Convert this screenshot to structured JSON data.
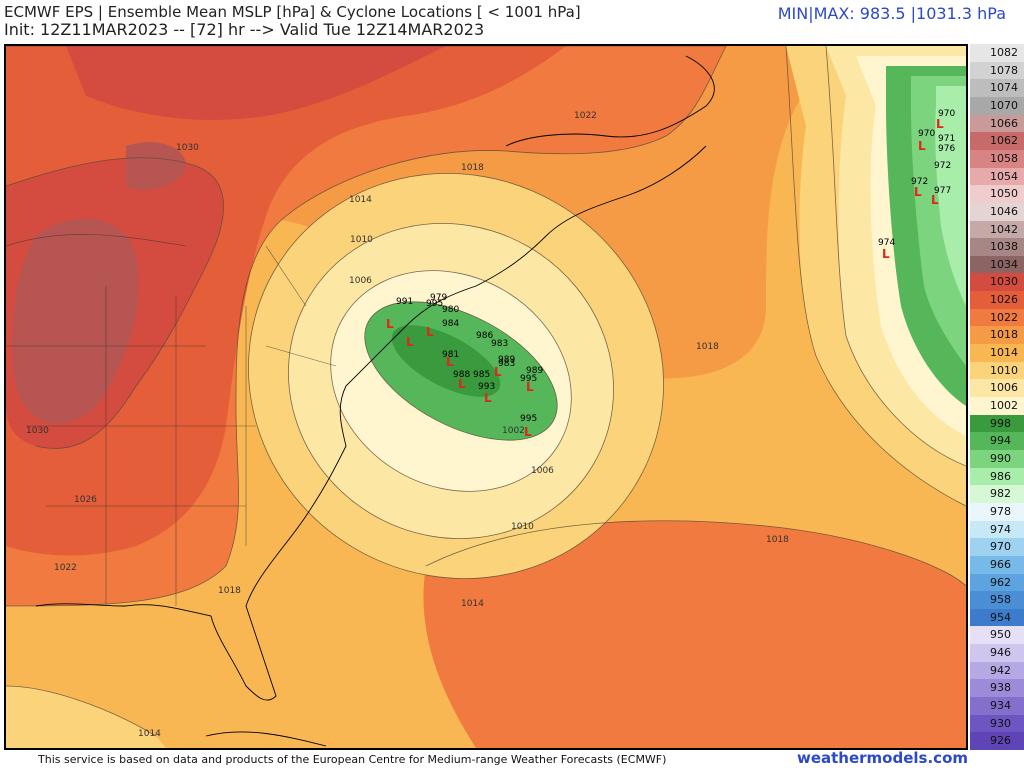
{
  "header": {
    "title": "ECMWF EPS | Ensemble Mean MSLP [hPa] & Cyclone Locations [ < 1001 hPa]",
    "subtitle": "Init: 12Z11MAR2023 -- [72] hr --> Valid Tue 12Z14MAR2023",
    "minmax": "MIN|MAX: 983.5 |1031.3 hPa"
  },
  "footer": {
    "attribution": "This service is based on data and products of the European Centre for Medium-range Weather Forecasts (ECMWF)",
    "brand": "weathermodels.com"
  },
  "colorbar": [
    {
      "label": "1082",
      "color": "#e6e6e6"
    },
    {
      "label": "1078",
      "color": "#d2d2d2"
    },
    {
      "label": "1074",
      "color": "#bdbdbd"
    },
    {
      "label": "1070",
      "color": "#a8a8a8"
    },
    {
      "label": "1066",
      "color": "#c99a9a"
    },
    {
      "label": "1062",
      "color": "#c76a6a"
    },
    {
      "label": "1058",
      "color": "#d98484"
    },
    {
      "label": "1054",
      "color": "#e7a9a9"
    },
    {
      "label": "1050",
      "color": "#f0cdcd"
    },
    {
      "label": "1046",
      "color": "#e4d4d4"
    },
    {
      "label": "1042",
      "color": "#c5a9a9"
    },
    {
      "label": "1038",
      "color": "#a78686"
    },
    {
      "label": "1034",
      "color": "#8d6464"
    },
    {
      "label": "1030",
      "color": "#d44b3f"
    },
    {
      "label": "1026",
      "color": "#e45e3a"
    },
    {
      "label": "1022",
      "color": "#f07a3f"
    },
    {
      "label": "1018",
      "color": "#f59a45"
    },
    {
      "label": "1014",
      "color": "#f8b752"
    },
    {
      "label": "1010",
      "color": "#fbd37a"
    },
    {
      "label": "1006",
      "color": "#fde7a5"
    },
    {
      "label": "1002",
      "color": "#fff5cf"
    },
    {
      "label": "998",
      "color": "#3a9b3e"
    },
    {
      "label": "994",
      "color": "#56b65a"
    },
    {
      "label": "990",
      "color": "#7dd47f"
    },
    {
      "label": "986",
      "color": "#a8eeaa"
    },
    {
      "label": "982",
      "color": "#d6f8d4"
    },
    {
      "label": "978",
      "color": "#e9f6fb"
    },
    {
      "label": "974",
      "color": "#c7e8f6"
    },
    {
      "label": "970",
      "color": "#9fd2f0"
    },
    {
      "label": "966",
      "color": "#77b9e8"
    },
    {
      "label": "962",
      "color": "#5ca3e0"
    },
    {
      "label": "958",
      "color": "#4a8ed6"
    },
    {
      "label": "954",
      "color": "#3d7ccd"
    },
    {
      "label": "950",
      "color": "#e5e0f5"
    },
    {
      "label": "946",
      "color": "#cfc6ee"
    },
    {
      "label": "942",
      "color": "#b6a8e4"
    },
    {
      "label": "938",
      "color": "#9d8bd9"
    },
    {
      "label": "934",
      "color": "#846fcd"
    },
    {
      "label": "930",
      "color": "#6d56c2"
    },
    {
      "label": "926",
      "color": "#5e44b6"
    }
  ],
  "isobar_labels": [
    {
      "text": "1030"
    },
    {
      "text": "1030"
    },
    {
      "text": "1026"
    },
    {
      "text": "1022"
    },
    {
      "text": "1022"
    },
    {
      "text": "1018"
    },
    {
      "text": "1018"
    },
    {
      "text": "1018"
    },
    {
      "text": "1018"
    },
    {
      "text": "1014"
    },
    {
      "text": "1014"
    },
    {
      "text": "1014"
    },
    {
      "text": "1010"
    },
    {
      "text": "1010"
    },
    {
      "text": "1006"
    },
    {
      "text": "1006"
    },
    {
      "text": "1002"
    }
  ],
  "cyclones": [
    {
      "value": "991"
    },
    {
      "value": "979"
    },
    {
      "value": "995"
    },
    {
      "value": "980"
    },
    {
      "value": "984"
    },
    {
      "value": "986"
    },
    {
      "value": "983"
    },
    {
      "value": "981"
    },
    {
      "value": "989"
    },
    {
      "value": "988"
    },
    {
      "value": "985"
    },
    {
      "value": "993"
    },
    {
      "value": "995"
    },
    {
      "value": "989"
    },
    {
      "value": "995"
    },
    {
      "value": "983"
    },
    {
      "value": "970"
    },
    {
      "value": "970"
    },
    {
      "value": "971"
    },
    {
      "value": "976"
    },
    {
      "value": "972"
    },
    {
      "value": "972"
    },
    {
      "value": "977"
    },
    {
      "value": "974"
    }
  ]
}
